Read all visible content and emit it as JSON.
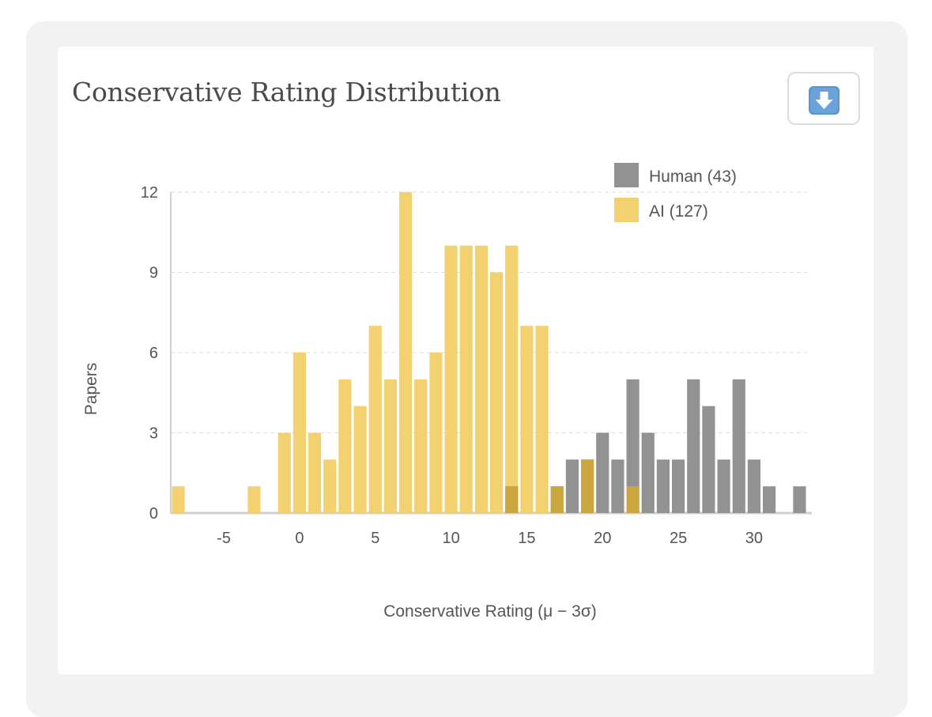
{
  "card": {
    "title": "Conservative Rating Distribution",
    "download_icon": "down-arrow-icon"
  },
  "colors": {
    "human": "#929292",
    "ai": "#f2d171",
    "overlap": "#cba53e",
    "grid": "#dddddd",
    "axis": "#d0d0d0",
    "text": "#555555",
    "title": "#4a4a4a",
    "download_blue": "#5a93cf"
  },
  "chart_data": {
    "type": "bar",
    "title": "Conservative Rating Distribution",
    "xlabel": "Conservative Rating (μ − 3σ)",
    "ylabel": "Papers",
    "xlim": [
      -8.5,
      33.5
    ],
    "ylim": [
      0,
      12
    ],
    "xticks": [
      -5,
      0,
      5,
      10,
      15,
      20,
      25,
      30
    ],
    "yticks": [
      0,
      3,
      6,
      9,
      12
    ],
    "bin_width": 1,
    "legend_position": "top-right",
    "series": [
      {
        "name": "Human",
        "legend_label": "Human (43)",
        "bins": [
          14,
          17,
          18,
          19,
          20,
          21,
          22,
          23,
          24,
          25,
          26,
          27,
          28,
          29,
          30,
          31,
          33
        ],
        "values": [
          1,
          1,
          2,
          2,
          3,
          2,
          5,
          3,
          2,
          2,
          5,
          4,
          2,
          5,
          2,
          1,
          1
        ]
      },
      {
        "name": "AI",
        "legend_label": "AI (127)",
        "bins": [
          -8,
          -3,
          -1,
          0,
          1,
          2,
          3,
          4,
          5,
          6,
          7,
          8,
          9,
          10,
          11,
          12,
          13,
          14,
          15,
          16,
          17,
          19,
          22
        ],
        "values": [
          1,
          1,
          3,
          6,
          3,
          2,
          5,
          4,
          7,
          5,
          12,
          5,
          6,
          10,
          10,
          10,
          9,
          10,
          7,
          7,
          1,
          2,
          1
        ]
      }
    ]
  }
}
